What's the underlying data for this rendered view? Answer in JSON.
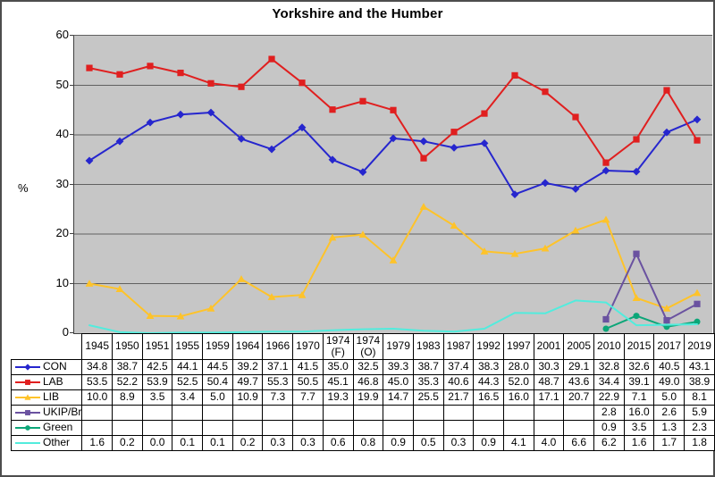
{
  "title": "Yorkshire and the Humber",
  "colors": {
    "plot_background": "#c6c6c6",
    "gridline": "#606060",
    "axis": "#404040",
    "table_border": "#000000",
    "frame_border": "#4d4d4d"
  },
  "chart_data": {
    "type": "line",
    "title": "Yorkshire and the Humber",
    "xlabel": "",
    "ylabel": "%",
    "ylim": [
      0,
      60
    ],
    "y_ticks": [
      0,
      10,
      20,
      30,
      40,
      50,
      60
    ],
    "grid": "horizontal",
    "legend_position": "table-left-column",
    "categories": [
      "1945",
      "1950",
      "1951",
      "1955",
      "1959",
      "1964",
      "1966",
      "1970",
      "1974 (F)",
      "1974 (O)",
      "1979",
      "1983",
      "1987",
      "1992",
      "1997",
      "2001",
      "2005",
      "2010",
      "2015",
      "2017",
      "2019"
    ],
    "series": [
      {
        "name": "CON",
        "color": "#2626ce",
        "marker": "diamond",
        "values": [
          34.8,
          38.7,
          42.5,
          44.1,
          44.5,
          39.2,
          37.1,
          41.5,
          35.0,
          32.5,
          39.3,
          38.7,
          37.4,
          38.3,
          28.0,
          30.3,
          29.1,
          32.8,
          32.6,
          40.5,
          43.1
        ]
      },
      {
        "name": "LAB",
        "color": "#e01f1f",
        "marker": "square",
        "values": [
          53.5,
          52.2,
          53.9,
          52.5,
          50.4,
          49.7,
          55.3,
          50.5,
          45.1,
          46.8,
          45.0,
          35.3,
          40.6,
          44.3,
          52.0,
          48.7,
          43.6,
          34.4,
          39.1,
          49.0,
          38.9
        ]
      },
      {
        "name": "LIB",
        "color": "#fec32a",
        "marker": "triangle",
        "values": [
          10.0,
          8.9,
          3.5,
          3.4,
          5.0,
          10.9,
          7.3,
          7.7,
          19.3,
          19.9,
          14.7,
          25.5,
          21.7,
          16.5,
          16.0,
          17.1,
          20.7,
          22.9,
          7.1,
          5.0,
          8.1
        ]
      },
      {
        "name": "UKIP/Br",
        "color": "#6a52a0",
        "marker": "square",
        "values": [
          null,
          null,
          null,
          null,
          null,
          null,
          null,
          null,
          null,
          null,
          null,
          null,
          null,
          null,
          null,
          null,
          null,
          2.8,
          16.0,
          2.6,
          5.9
        ]
      },
      {
        "name": "Green",
        "color": "#0ca678",
        "marker": "circle",
        "values": [
          null,
          null,
          null,
          null,
          null,
          null,
          null,
          null,
          null,
          null,
          null,
          null,
          null,
          null,
          null,
          null,
          null,
          0.9,
          3.5,
          1.3,
          2.3
        ]
      },
      {
        "name": "Other",
        "color": "#52ecdd",
        "marker": "none",
        "values": [
          1.6,
          0.2,
          0.0,
          0.1,
          0.1,
          0.2,
          0.3,
          0.3,
          0.6,
          0.8,
          0.9,
          0.5,
          0.3,
          0.9,
          4.1,
          4.0,
          6.6,
          6.2,
          1.6,
          1.7,
          1.8
        ]
      }
    ]
  }
}
